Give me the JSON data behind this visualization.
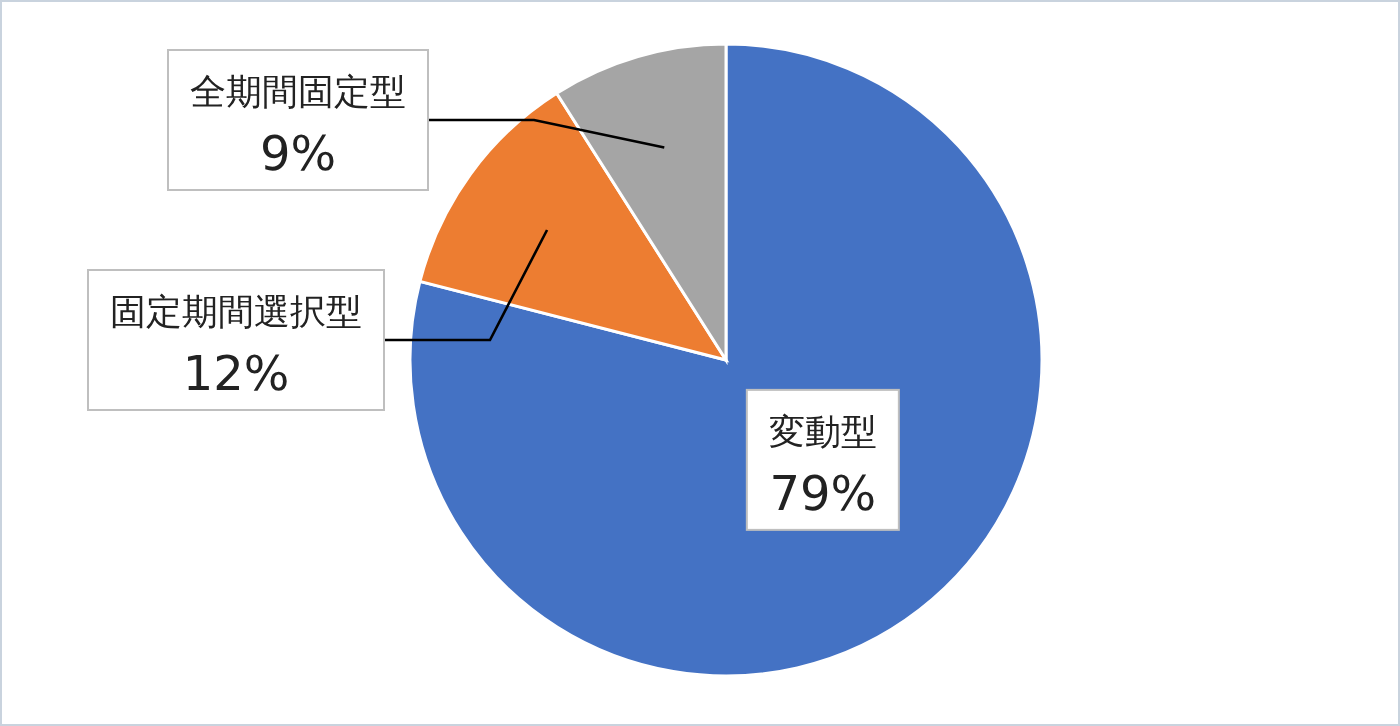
{
  "chart_data": {
    "type": "pie",
    "categories": [
      "変動型",
      "固定期間選択型",
      "全期間固定型"
    ],
    "values": [
      79,
      12,
      9
    ],
    "colors": [
      "#4472c4",
      "#ed7d31",
      "#a5a5a5"
    ],
    "value_labels": [
      "79%",
      "12%",
      "9%"
    ]
  }
}
